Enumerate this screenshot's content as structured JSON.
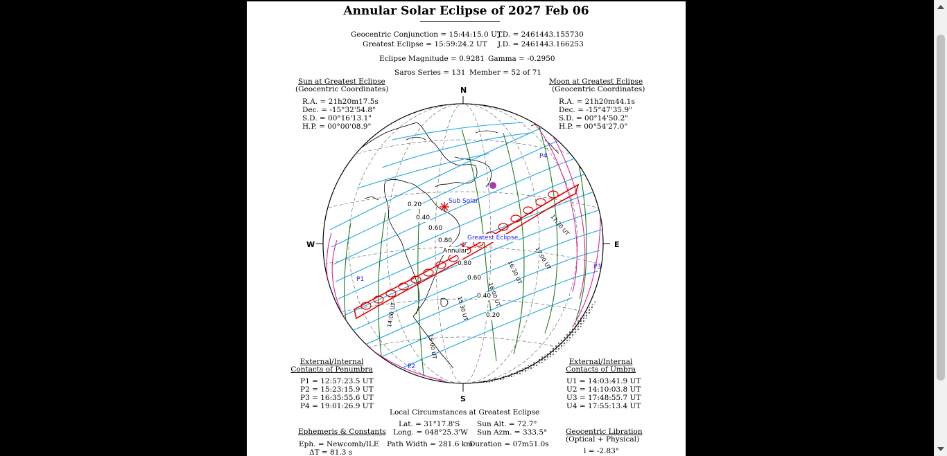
{
  "title": "Annular Solar Eclipse of  2027 Feb 06",
  "header": {
    "conj": "Geocentric Conjunction =  15:44:15.0 UT",
    "conj_jd": "J.D. =  2461443.155730",
    "greatest": "Greatest Eclipse =  15:59:24.2 UT",
    "greatest_jd": "J.D. =  2461443.166253",
    "magnitude": "Eclipse Magnitude =  0.9281",
    "gamma": "Gamma =  -0.2950",
    "saros": "Saros Series =  131",
    "member": "Member =  52 of 71"
  },
  "sun": {
    "title": "Sun at Greatest Eclipse",
    "subtitle": "(Geocentric Coordinates)",
    "lines": [
      "R.A. =  21h20m17.5s",
      "Dec. =  -15°32'54.8\"",
      "S.D. =  00°16'13.1\"",
      "H.P. =  00°00'08.9\""
    ]
  },
  "moon": {
    "title": "Moon at Greatest Eclipse",
    "subtitle": "(Geocentric Coordinates)",
    "lines": [
      "R.A. =  21h20m44.1s",
      "Dec. =  -15°47'35.9\"",
      "S.D. =  00°14'50.2\"",
      "H.P. =  00°54'27.0\""
    ]
  },
  "compass": {
    "n": "N",
    "s": "S",
    "w": "W",
    "e": "E"
  },
  "map_labels": {
    "sub_solar": "Sub Solar",
    "greatest_eclipse": "Greatest Eclipse",
    "annular": "Annular",
    "p1": "P1",
    "p2": "P2",
    "p3": "P3",
    "p4": "P4",
    "mag_020": "0.20",
    "mag_040": "0.40",
    "mag_060": "0.60",
    "mag_080": "0.80",
    "mag_080b": "0.80",
    "mag_060b": "0.60",
    "mag_040b": "0.40",
    "mag_020b": "0.20",
    "t1": "14:00 UT",
    "t2": "15:00 UT",
    "t3": "15:30 UT",
    "t4": "16:00 UT",
    "t5": "16:30 UT",
    "t6": "17:00 UT",
    "t7": "17:30 UT"
  },
  "penumbra": {
    "title1": "External/Internal",
    "title2": "Contacts of Penumbra",
    "lines": [
      "P1 =  12:57:23.5 UT",
      "P2 =  15:23:15.9 UT",
      "P3 =  16:35:55.6 UT",
      "P4 =  19:01:26.9 UT"
    ]
  },
  "umbra": {
    "title1": "External/Internal",
    "title2": "Contacts of Umbra",
    "lines": [
      "U1 =  14:03:41.9 UT",
      "U2 =  14:10:03.8 UT",
      "U3 =  17:48:55.7 UT",
      "U4 =  17:55:13.4 UT"
    ]
  },
  "local": {
    "title": "Local Circumstances at Greatest Eclipse",
    "lat": "Lat. =  31°17.8'S",
    "sun_alt": "Sun Alt. =   72.7°",
    "long": "Long. =  048°25.3'W",
    "sun_azm": "Sun Azm. =  333.5°",
    "path_width": "Path Width =  281.6 km",
    "duration": "Duration =  07m51.0s"
  },
  "ephemeris": {
    "title": "Ephemeris & Constants",
    "eph": "Eph. =  Newcomb/ILE",
    "dt": "ΔT =    81.3 s"
  },
  "libration": {
    "title": "Geocentric Libration",
    "subtitle": "(Optical + Physical)",
    "l": "l =   -2.83°"
  },
  "colors": {
    "magnitude_lines": "#1aa6e6",
    "time_lines": "#1a7d1a",
    "penumbra_limits": "#e0209a",
    "umbra_path": "#e00000",
    "text_labels": "#1a1aff",
    "moon_marker": "#a040b0"
  }
}
